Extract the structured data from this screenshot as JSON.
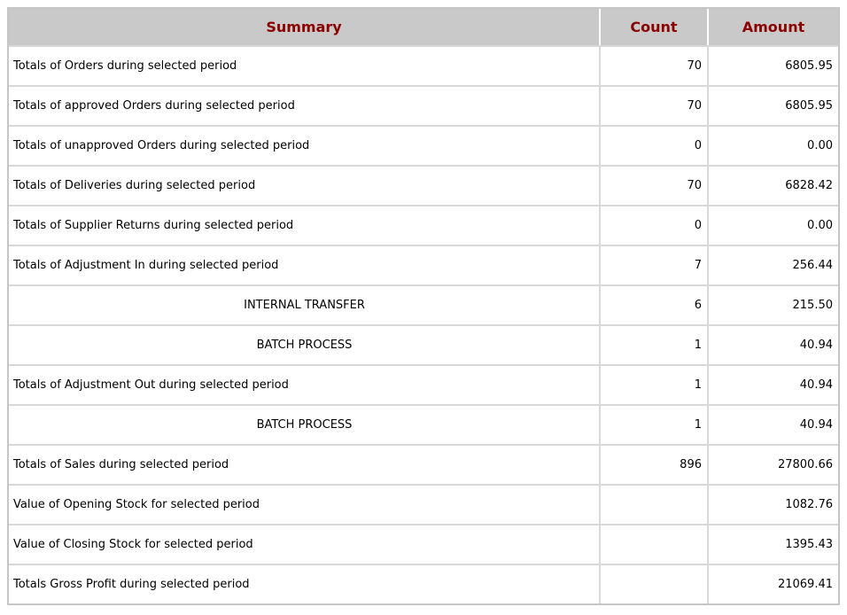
{
  "colors": {
    "header_bg": "#c9c9c9",
    "header_text": "#8b0000",
    "outer_border": "#c6c6c6",
    "cell_border": "#d8d8d8",
    "header_separator": "#ffffff",
    "row_bg": "#ffffff",
    "body_text": "#000000"
  },
  "table": {
    "headers": [
      {
        "id": "summary",
        "label": "Summary"
      },
      {
        "id": "count",
        "label": "Count"
      },
      {
        "id": "amount",
        "label": "Amount"
      }
    ],
    "rows": [
      {
        "summary": "Totals of Orders during selected period",
        "count": "70",
        "amount": "6805.95",
        "align": "left"
      },
      {
        "summary": "Totals of approved Orders during selected period",
        "count": "70",
        "amount": "6805.95",
        "align": "left"
      },
      {
        "summary": "Totals of unapproved Orders during selected period",
        "count": "0",
        "amount": "0.00",
        "align": "left"
      },
      {
        "summary": "Totals of Deliveries during selected period",
        "count": "70",
        "amount": "6828.42",
        "align": "left"
      },
      {
        "summary": "Totals of Supplier Returns during selected period",
        "count": "0",
        "amount": "0.00",
        "align": "left"
      },
      {
        "summary": "Totals of Adjustment In during selected period",
        "count": "7",
        "amount": "256.44",
        "align": "left"
      },
      {
        "summary": "INTERNAL TRANSFER",
        "count": "6",
        "amount": "215.50",
        "align": "center"
      },
      {
        "summary": "BATCH PROCESS",
        "count": "1",
        "amount": "40.94",
        "align": "center"
      },
      {
        "summary": "Totals of Adjustment Out during selected period",
        "count": "1",
        "amount": "40.94",
        "align": "left"
      },
      {
        "summary": "BATCH PROCESS",
        "count": "1",
        "amount": "40.94",
        "align": "center"
      },
      {
        "summary": "Totals of Sales during selected period",
        "count": "896",
        "amount": "27800.66",
        "align": "left"
      },
      {
        "summary": "Value of Opening Stock for selected period",
        "count": "",
        "amount": "1082.76",
        "align": "left"
      },
      {
        "summary": "Value of Closing Stock for selected period",
        "count": "",
        "amount": "1395.43",
        "align": "left"
      },
      {
        "summary": "Totals Gross Profit during selected period",
        "count": "",
        "amount": "21069.41",
        "align": "left"
      }
    ]
  }
}
